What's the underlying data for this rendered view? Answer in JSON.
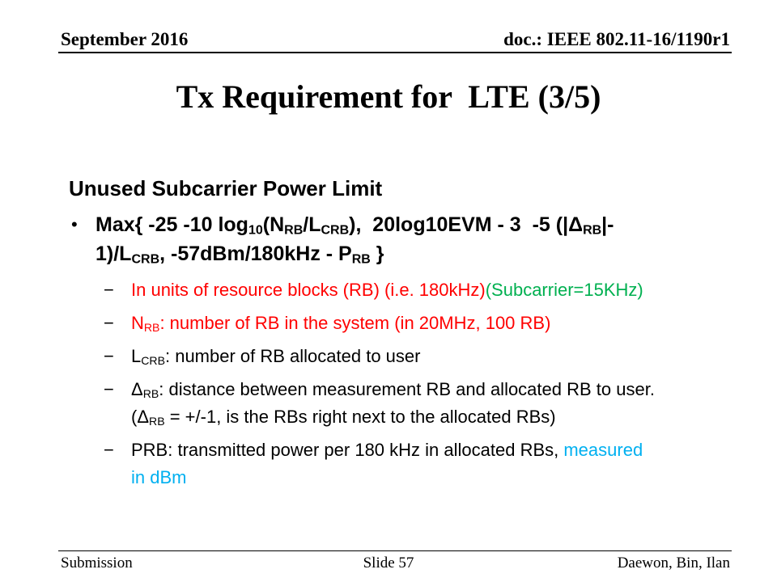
{
  "header": {
    "date": "September 2016",
    "doc": "doc.: IEEE 802.11-16/1190r1"
  },
  "title": "Tx Requirement for  LTE (3/5)",
  "section_heading": "Unused Subcarrier Power Limit",
  "markers": {
    "bullet": "•",
    "dash": "−"
  },
  "formula_lines": [
    [
      {
        "t": "Max{ -25 -10 log"
      },
      {
        "t": "10",
        "sub": true
      },
      {
        "t": "(N"
      },
      {
        "t": "RB",
        "sub": true
      },
      {
        "t": "/L"
      },
      {
        "t": "CRB",
        "sub": true
      },
      {
        "t": "),  20log10EVM - 3  -5 (|Δ"
      },
      {
        "t": "RB",
        "sub": true
      },
      {
        "t": "|-"
      }
    ],
    [
      {
        "t": "1)/L"
      },
      {
        "t": "CRB",
        "sub": true
      },
      {
        "t": ", -57dBm/180kHz - P"
      },
      {
        "t": "RB",
        "sub": true
      },
      {
        "t": " }"
      }
    ]
  ],
  "sub_bullets": [
    {
      "lines": [
        [
          {
            "t": "In units of resource blocks (RB) (i.e. 180kHz)",
            "color": "red"
          },
          {
            "t": "(Subcarrier=15KHz)",
            "color": "green"
          }
        ]
      ]
    },
    {
      "lines": [
        [
          {
            "t": "N",
            "color": "red"
          },
          {
            "t": "RB",
            "sub": true,
            "color": "red"
          },
          {
            "t": ": number of RB in the system (in 20MHz, 100 RB)",
            "color": "red"
          }
        ]
      ]
    },
    {
      "lines": [
        [
          {
            "t": "L"
          },
          {
            "t": "CRB",
            "sub": true
          },
          {
            "t": ": number of RB allocated to user"
          }
        ]
      ]
    },
    {
      "lines": [
        [
          {
            "t": "Δ"
          },
          {
            "t": "RB",
            "sub": true
          },
          {
            "t": ": distance between measurement RB and allocated RB to user."
          }
        ],
        [
          {
            "t": "(Δ"
          },
          {
            "t": "RB",
            "sub": true
          },
          {
            "t": " = +/-1, is the RBs right next to the allocated RBs)"
          }
        ]
      ]
    },
    {
      "lines": [
        [
          {
            "t": "PRB: transmitted power per 180 kHz in allocated RBs, "
          },
          {
            "t": "measured",
            "color": "blue"
          }
        ],
        [
          {
            "t": "in dBm",
            "color": "blue"
          }
        ]
      ]
    }
  ],
  "footer": {
    "left": "Submission",
    "center": "Slide 57",
    "right": "Daewon, Bin, Ilan"
  },
  "colors": {
    "red": "#FF0000",
    "green": "#00B050",
    "blue": "#00B0F0",
    "black": "#000000"
  }
}
